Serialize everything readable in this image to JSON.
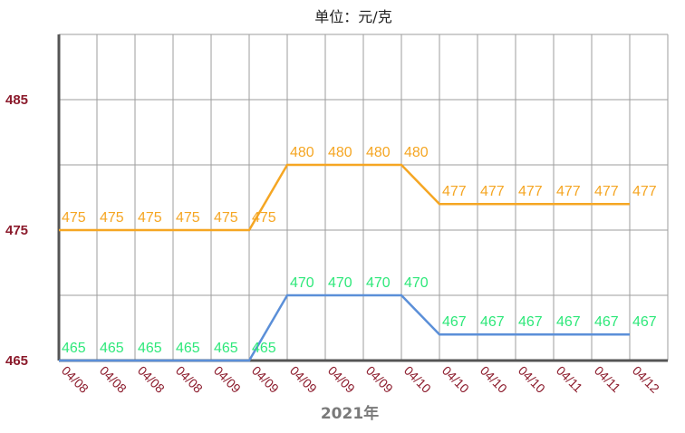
{
  "chart_data": {
    "type": "line",
    "title": "单位：元/克",
    "xlabel": "2021年",
    "ylabel": "",
    "categories": [
      "04/08",
      "04/08",
      "04/08",
      "04/08",
      "04/09",
      "04/09",
      "04/09",
      "04/09",
      "04/09",
      "04/10",
      "04/10",
      "04/10",
      "04/10",
      "04/11",
      "04/11",
      "04/12"
    ],
    "series": [
      {
        "color": "#f5a623",
        "values": [
          475,
          475,
          475,
          475,
          475,
          475,
          480,
          480,
          480,
          480,
          477,
          477,
          477,
          477,
          477,
          477
        ]
      },
      {
        "color": "#5b8fd8",
        "label_color": "#2ee87a",
        "values": [
          465,
          465,
          465,
          465,
          465,
          465,
          470,
          470,
          470,
          470,
          467,
          467,
          467,
          467,
          467,
          467
        ]
      }
    ],
    "yticks": [
      465,
      475,
      485
    ],
    "ylim": [
      465,
      490
    ],
    "grid": true,
    "legend": "none"
  }
}
